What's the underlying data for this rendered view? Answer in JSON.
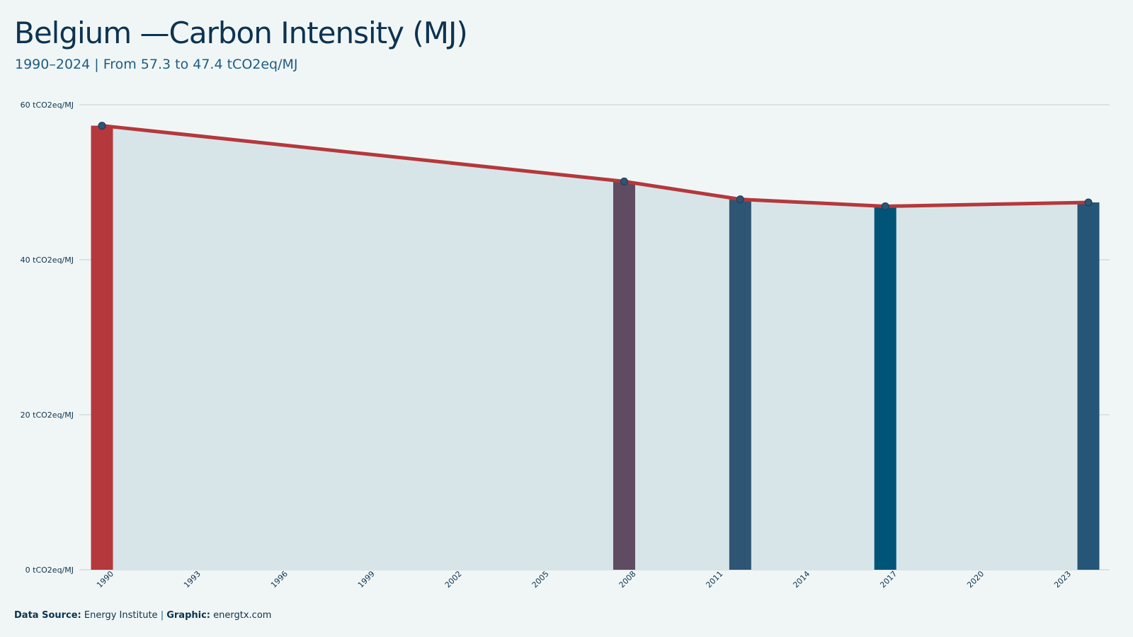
{
  "header": {
    "title": "Belgium —Carbon Intensity (MJ)",
    "subtitle": "1990–2024 | From 57.3 to 47.4 tCO2eq/MJ"
  },
  "footer": {
    "source_label": "Data Source:",
    "source_value": "Energy Institute",
    "separator": "|",
    "graphic_label": "Graphic:",
    "graphic_value": "energtx.com"
  },
  "colors": {
    "line": "#b5383c",
    "area": "#d7e5e9",
    "grid": "#c9d8dd",
    "marker": "#2f5575",
    "bars": [
      "#b5383c",
      "#5f4b62",
      "#2f5575",
      "#005478",
      "#255677"
    ]
  },
  "chart_data": {
    "type": "line",
    "title": "Belgium —Carbon Intensity (MJ)",
    "subtitle": "1990–2024 | From 57.3 to 47.4 tCO2eq/MJ",
    "xlabel": "",
    "ylabel": "",
    "xlim": [
      1990,
      2024
    ],
    "ylim": [
      0,
      60
    ],
    "x_ticks": [
      1990,
      1993,
      1996,
      1999,
      2002,
      2005,
      2008,
      2011,
      2014,
      2017,
      2020,
      2023
    ],
    "x_tick_labels": [
      "1990",
      "1993",
      "1996",
      "1999",
      "2002",
      "2005",
      "2008",
      "2011",
      "2014",
      "2017",
      "2020",
      "2023"
    ],
    "y_ticks": [
      0,
      20,
      40,
      60
    ],
    "y_tick_labels": [
      "0 tCO2eq/MJ",
      "20 tCO2eq/MJ",
      "40 tCO2eq/MJ",
      "60 tCO2eq/MJ"
    ],
    "grid": true,
    "legend": "none",
    "series": [
      {
        "x": [
          1990,
          2008,
          2012,
          2017,
          2024
        ],
        "values": [
          57.3,
          50.1,
          47.8,
          46.9,
          47.4
        ]
      }
    ]
  }
}
